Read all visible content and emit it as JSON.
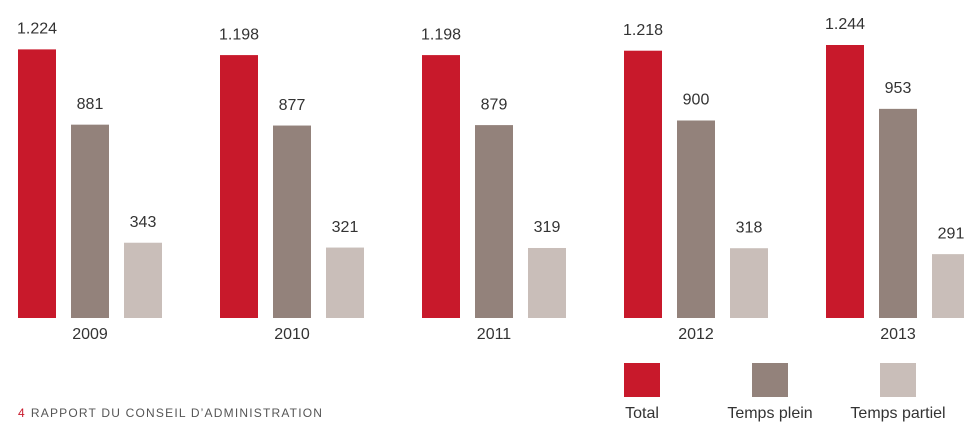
{
  "chart_data": {
    "type": "bar",
    "categories": [
      "2009",
      "2010",
      "2011",
      "2012",
      "2013"
    ],
    "series": [
      {
        "name": "Total",
        "color": "#c8192b",
        "values": [
          1224,
          1198,
          1198,
          1218,
          1244
        ],
        "value_labels": [
          "1.224",
          "1.198",
          "1.198",
          "1.218",
          "1.244"
        ]
      },
      {
        "name": "Temps plein",
        "color": "#93827b",
        "values": [
          881,
          877,
          879,
          900,
          953
        ]
      },
      {
        "name": "Temps partiel",
        "color": "#c9beb9",
        "values": [
          343,
          321,
          319,
          318,
          291
        ]
      }
    ]
  },
  "footer": {
    "page": "4",
    "text": "RAPPORT DU CONSEIL D’ADMINISTRATION"
  }
}
